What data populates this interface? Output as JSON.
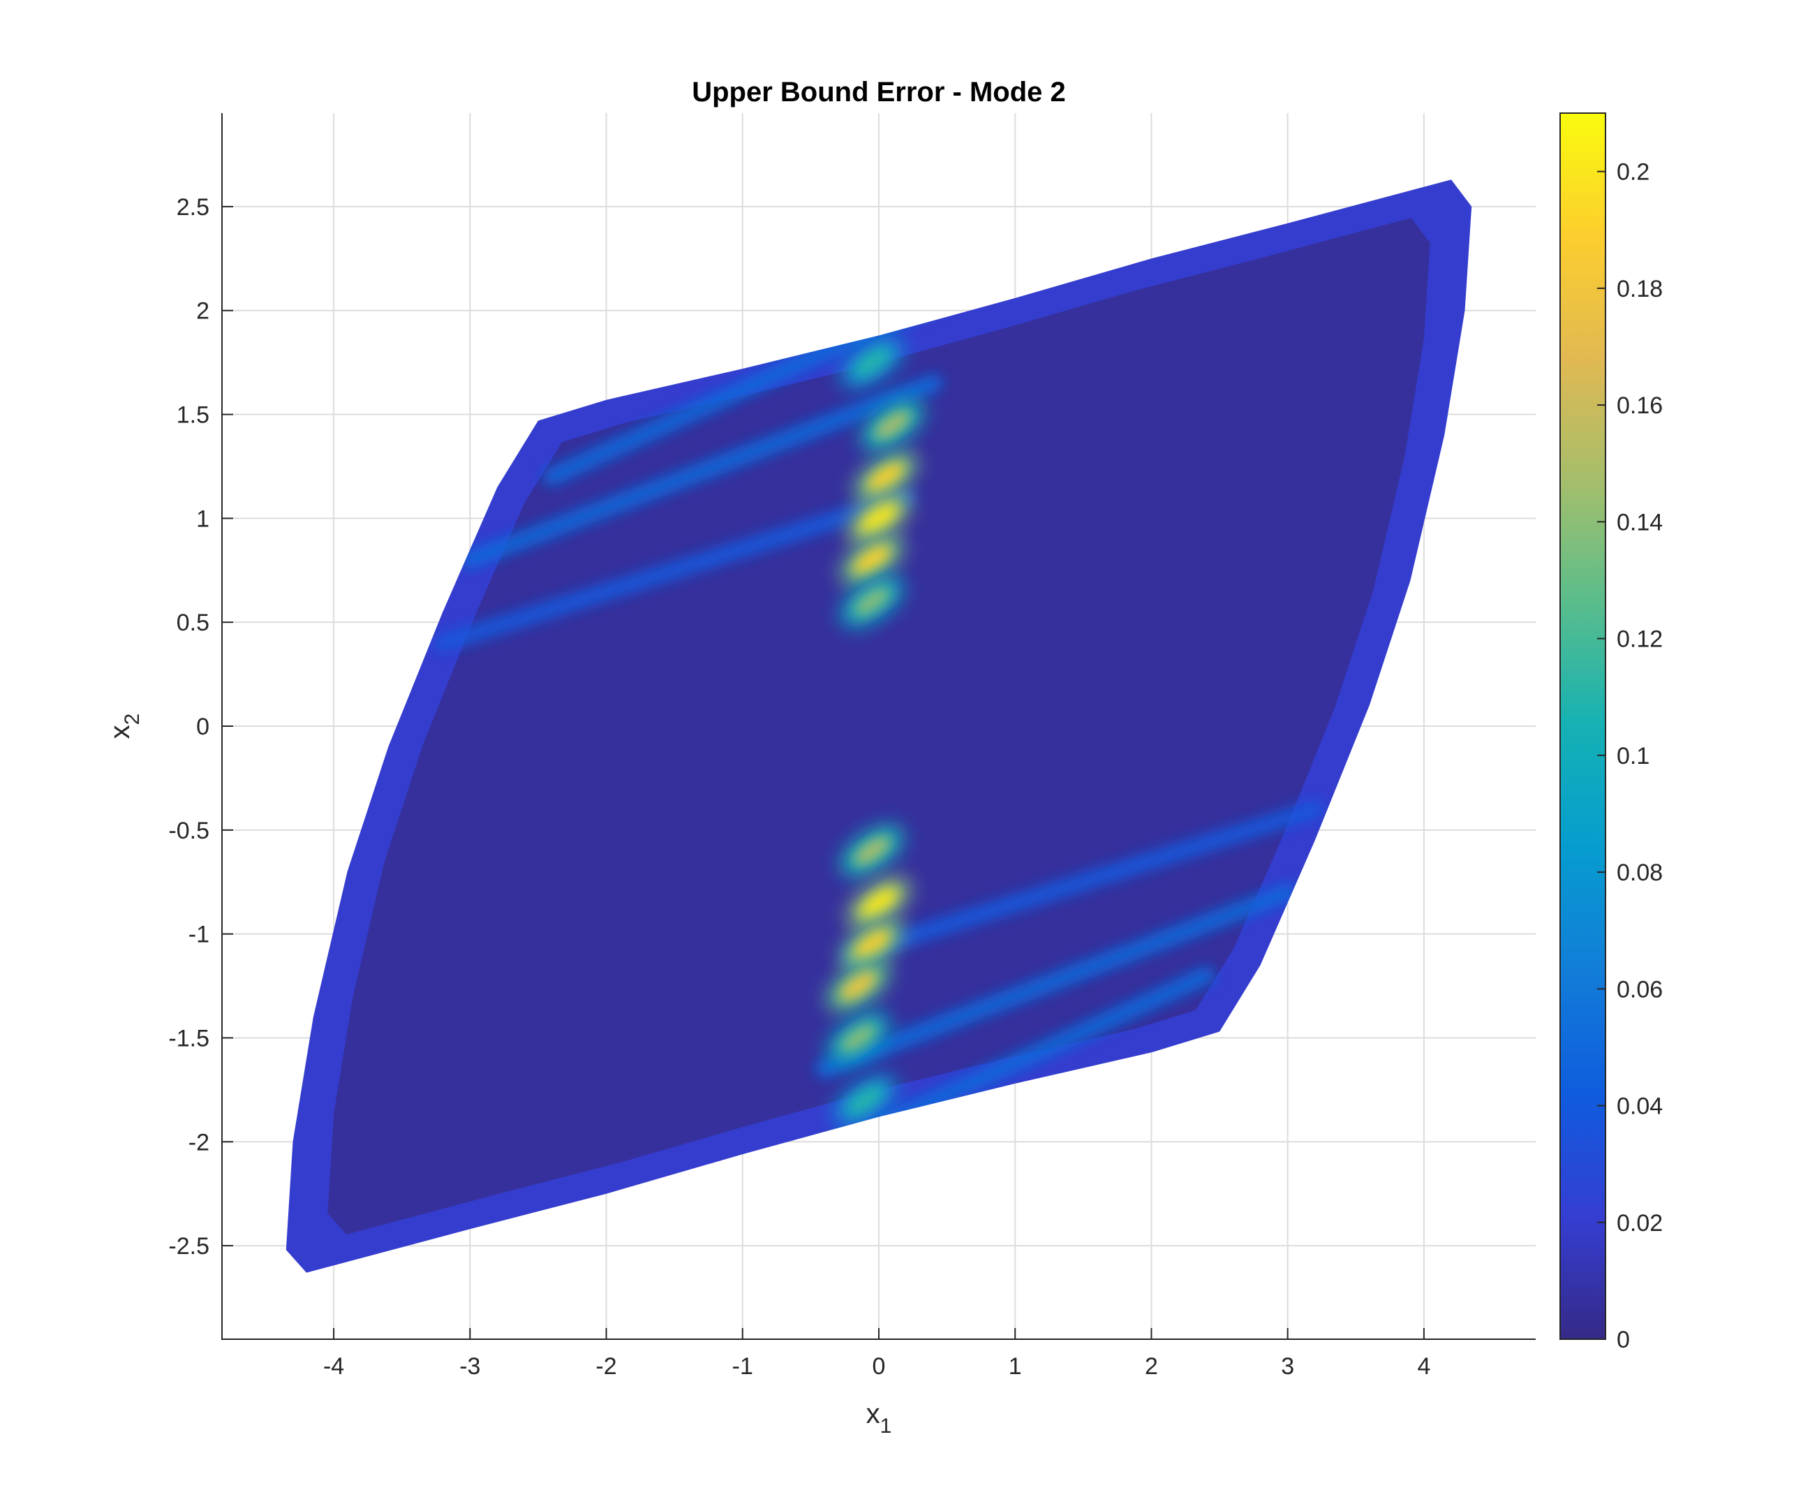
{
  "chart_data": {
    "type": "heatmap",
    "title": "Upper Bound Error - Mode 2",
    "xlabel": {
      "base": "x",
      "sub": "1"
    },
    "ylabel": {
      "base": "x",
      "sub": "2"
    },
    "xlim": [
      -4.82,
      4.82
    ],
    "ylim": [
      -2.95,
      2.95
    ],
    "xticks": [
      -4,
      -3,
      -2,
      -1,
      0,
      1,
      2,
      3,
      4
    ],
    "xtick_labels": [
      "-4",
      "-3",
      "-2",
      "-1",
      "0",
      "1",
      "2",
      "3",
      "4"
    ],
    "yticks": [
      -2.5,
      -2,
      -1.5,
      -1,
      -0.5,
      0,
      0.5,
      1,
      1.5,
      2,
      2.5
    ],
    "ytick_labels": [
      "-2.5",
      "-2",
      "-1.5",
      "-1",
      "-0.5",
      "0",
      "0.5",
      "1",
      "1.5",
      "2",
      "2.5"
    ],
    "grid": true,
    "colormap": "parula",
    "clim": [
      0,
      0.21
    ],
    "colorbar": {
      "ticks": [
        0,
        0.02,
        0.04,
        0.06,
        0.08,
        0.1,
        0.12,
        0.14,
        0.16,
        0.18,
        0.2
      ],
      "tick_labels": [
        "0",
        "0.02",
        "0.04",
        "0.06",
        "0.08",
        "0.1",
        "0.12",
        "0.14",
        "0.16",
        "0.18",
        "0.2"
      ],
      "location": "right"
    },
    "region_boundary": [
      [
        -4.35,
        -2.52
      ],
      [
        -4.2,
        -2.63
      ],
      [
        -3.0,
        -2.42
      ],
      [
        -2.0,
        -2.25
      ],
      [
        -1.0,
        -2.06
      ],
      [
        0.0,
        -1.88
      ],
      [
        1.0,
        -1.72
      ],
      [
        2.0,
        -1.57
      ],
      [
        2.5,
        -1.47
      ],
      [
        2.8,
        -1.15
      ],
      [
        3.2,
        -0.55
      ],
      [
        3.6,
        0.1
      ],
      [
        3.9,
        0.7
      ],
      [
        4.15,
        1.4
      ],
      [
        4.3,
        2.0
      ],
      [
        4.35,
        2.5
      ],
      [
        4.2,
        2.63
      ],
      [
        3.0,
        2.42
      ],
      [
        2.0,
        2.25
      ],
      [
        1.0,
        2.06
      ],
      [
        0.0,
        1.88
      ],
      [
        -1.0,
        1.72
      ],
      [
        -2.0,
        1.57
      ],
      [
        -2.5,
        1.47
      ],
      [
        -2.8,
        1.15
      ],
      [
        -3.2,
        0.55
      ],
      [
        -3.6,
        -0.1
      ],
      [
        -3.9,
        -0.7
      ],
      [
        -4.15,
        -1.4
      ],
      [
        -4.3,
        -2.0
      ]
    ],
    "hotspots": [
      {
        "x": 0.05,
        "y": 1.2,
        "value": 0.19
      },
      {
        "x": 0.0,
        "y": 1.0,
        "value": 0.2
      },
      {
        "x": -0.05,
        "y": 0.8,
        "value": 0.19
      },
      {
        "x": -0.05,
        "y": 0.6,
        "value": 0.14
      },
      {
        "x": 0.1,
        "y": 1.45,
        "value": 0.15
      },
      {
        "x": -0.05,
        "y": 1.75,
        "value": 0.11
      },
      {
        "x": -0.05,
        "y": -0.6,
        "value": 0.15
      },
      {
        "x": 0.0,
        "y": -0.85,
        "value": 0.2
      },
      {
        "x": -0.05,
        "y": -1.05,
        "value": 0.19
      },
      {
        "x": -0.15,
        "y": -1.25,
        "value": 0.18
      },
      {
        "x": -0.15,
        "y": -1.5,
        "value": 0.14
      },
      {
        "x": -0.1,
        "y": -1.8,
        "value": 0.11
      }
    ],
    "ridges": [
      {
        "from": [
          -2.4,
          1.2
        ],
        "to": [
          0.6,
          2.1
        ],
        "value": 0.05
      },
      {
        "from": [
          -3.0,
          0.8
        ],
        "to": [
          0.4,
          1.65
        ],
        "value": 0.05
      },
      {
        "from": [
          -3.2,
          0.4
        ],
        "to": [
          0.2,
          1.1
        ],
        "value": 0.04
      },
      {
        "from": [
          2.4,
          -1.2
        ],
        "to": [
          -0.6,
          -2.1
        ],
        "value": 0.05
      },
      {
        "from": [
          3.0,
          -0.8
        ],
        "to": [
          -0.4,
          -1.65
        ],
        "value": 0.05
      },
      {
        "from": [
          3.2,
          -0.4
        ],
        "to": [
          -0.2,
          -1.1
        ],
        "value": 0.04
      }
    ],
    "background_value": 0.006,
    "edge_value": 0.02
  }
}
